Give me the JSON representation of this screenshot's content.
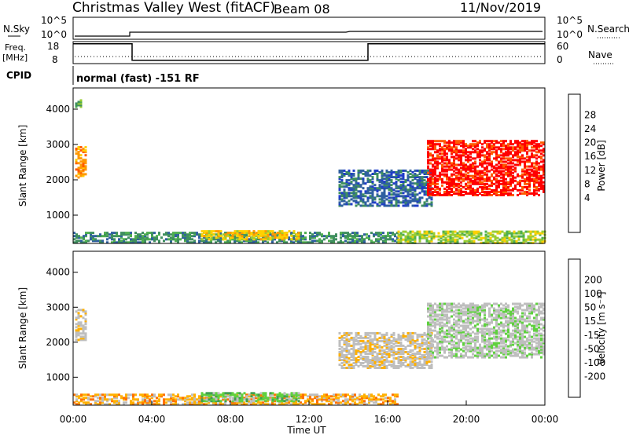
{
  "header": {
    "title": "Christmas Valley West (fitACF)",
    "beam": "Beam 08",
    "date": "11/Nov/2019"
  },
  "chart_data": [
    {
      "type": "line",
      "name": "noise-panel",
      "left_label": "N.Sky",
      "right_label": "N.Search",
      "left_ticks": [
        "10^5",
        "10^0"
      ],
      "right_ticks": [
        "10^5",
        "10^0"
      ],
      "note": "noise level traces across 00:00–24:00 UT"
    },
    {
      "type": "line",
      "name": "frequency-panel",
      "left_label": "Freq.\n[MHz]",
      "right_label": "Nave",
      "left_ticks": [
        "18",
        "8"
      ],
      "right_ticks": [
        "60",
        "0"
      ],
      "freq_steps": [
        {
          "t0": 0,
          "t1": 3,
          "level": 0.9
        },
        {
          "t0": 3,
          "t1": 15,
          "level": 0.15
        },
        {
          "t0": 15,
          "t1": 24,
          "level": 0.9
        }
      ]
    },
    {
      "type": "table",
      "name": "cpid-row",
      "label": "CPID",
      "text": "normal (fast) -151 RF"
    },
    {
      "type": "heatmap",
      "name": "power-panel",
      "ylabel": "Slant Range [km]",
      "xlim": [
        0,
        24
      ],
      "ylim": [
        200,
        4600
      ],
      "yticks": [
        1000,
        2000,
        3000,
        4000
      ],
      "colorbar_label": "Power [dB]",
      "colorbar_ticks": [
        "28",
        "24",
        "20",
        "16",
        "12",
        "8",
        "4"
      ],
      "colorbar_colors": [
        "#0000ff",
        "#1f3cc8",
        "#2f5fa0",
        "#3f8f5f",
        "#4faf4f",
        "#9acd32",
        "#ffd000",
        "#ff9800",
        "#ff5a00",
        "#ff0000"
      ],
      "regions": [
        {
          "t0": 0.1,
          "t1": 0.7,
          "r0": 2100,
          "r1": 3000,
          "level": 7
        },
        {
          "t0": 0.1,
          "t1": 0.35,
          "r0": 4100,
          "r1": 4300,
          "level": 4
        },
        {
          "t0": 0.0,
          "t1": 16.5,
          "r0": 260,
          "r1": 560,
          "level": 3
        },
        {
          "t0": 6.5,
          "t1": 11.5,
          "r0": 350,
          "r1": 600,
          "level": 6
        },
        {
          "t0": 13.5,
          "t1": 18.2,
          "r0": 1300,
          "r1": 2300,
          "level": 2
        },
        {
          "t0": 18.0,
          "t1": 24.0,
          "r0": 1600,
          "r1": 3150,
          "level": 9
        },
        {
          "t0": 16.5,
          "t1": 24.0,
          "r0": 250,
          "r1": 600,
          "level": 5
        }
      ]
    },
    {
      "type": "heatmap",
      "name": "velocity-panel",
      "ylabel": "Slant Range [km]",
      "xlabel": "Time UT",
      "xlim": [
        0,
        24
      ],
      "ylim": [
        200,
        4600
      ],
      "yticks": [
        1000,
        2000,
        3000,
        4000
      ],
      "xticks": [
        "00:00",
        "04:00",
        "08:00",
        "12:00",
        "16:00",
        "20:00",
        "00:00"
      ],
      "colorbar_label": "Velocity [m s⁻¹]",
      "colorbar_ticks": [
        "200",
        "100",
        "50",
        "15",
        "-15",
        "-50",
        "-100",
        "-200"
      ],
      "colorbar_colors": [
        "#ff0000",
        "#ff3a00",
        "#ff7000",
        "#ffb000",
        "#bebebe",
        "#bebebe",
        "#5fd03f",
        "#3f9f4f",
        "#2f5f8f",
        "#1f2fbf"
      ],
      "regions": [
        {
          "t0": 0.1,
          "t1": 0.7,
          "r0": 2100,
          "r1": 3000,
          "level": 4
        },
        {
          "t0": 0.0,
          "t1": 16.5,
          "r0": 260,
          "r1": 560,
          "level": 3
        },
        {
          "t0": 6.5,
          "t1": 11.5,
          "r0": 350,
          "r1": 600,
          "level": 6
        },
        {
          "t0": 13.5,
          "t1": 18.2,
          "r0": 1300,
          "r1": 2300,
          "level": 4
        },
        {
          "t0": 18.0,
          "t1": 24.0,
          "r0": 1600,
          "r1": 3150,
          "level": 5
        }
      ]
    }
  ]
}
